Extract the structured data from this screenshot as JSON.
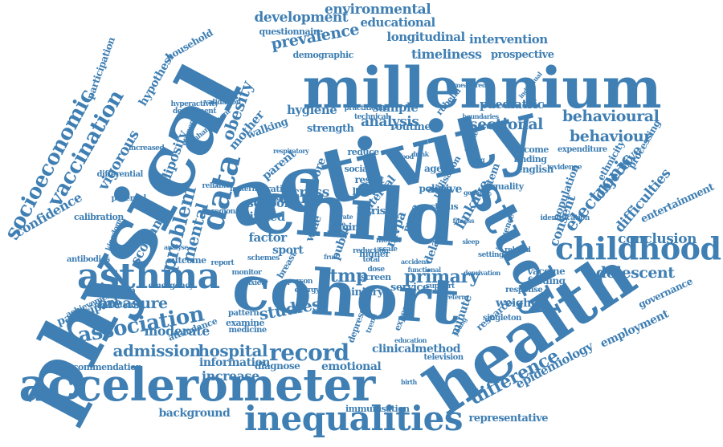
{
  "color": "#3f7fb3",
  "words": [
    {
      "text": "physical"
    },
    {
      "text": "activity"
    },
    {
      "text": "child"
    },
    {
      "text": "cohort"
    },
    {
      "text": "millennium"
    },
    {
      "text": "health"
    },
    {
      "text": "study"
    },
    {
      "text": "accelerometer"
    },
    {
      "text": "inequalities"
    },
    {
      "text": "asthma"
    },
    {
      "text": "childhood"
    },
    {
      "text": "data"
    },
    {
      "text": "record"
    },
    {
      "text": "association"
    },
    {
      "text": "socioeconomic"
    },
    {
      "text": "vaccination"
    },
    {
      "text": "admission"
    },
    {
      "text": "hospital"
    },
    {
      "text": "primary"
    },
    {
      "text": "difference"
    },
    {
      "text": "electronic"
    },
    {
      "text": "behavioural"
    },
    {
      "text": "behaviour"
    },
    {
      "text": "adolescent"
    },
    {
      "text": "sectional"
    },
    {
      "text": "environmental"
    },
    {
      "text": "development"
    },
    {
      "text": "prevalence"
    },
    {
      "text": "longitudinal"
    },
    {
      "text": "educational"
    },
    {
      "text": "timeliness"
    },
    {
      "text": "intervention"
    },
    {
      "text": "prospective"
    },
    {
      "text": "analysis"
    },
    {
      "text": "paediatric"
    },
    {
      "text": "measure"
    },
    {
      "text": "moderate"
    },
    {
      "text": "problem"
    },
    {
      "text": "mental"
    },
    {
      "text": "obesity"
    },
    {
      "text": "studies"
    },
    {
      "text": "year"
    },
    {
      "text": "tmp"
    },
    {
      "text": "consent"
    },
    {
      "text": "objective"
    },
    {
      "text": "difficulties"
    },
    {
      "text": "population"
    },
    {
      "text": "conclusion"
    },
    {
      "text": "entertainment"
    },
    {
      "text": "epidemiology"
    },
    {
      "text": "employment"
    },
    {
      "text": "representative"
    },
    {
      "text": "recommendation"
    },
    {
      "text": "information"
    },
    {
      "text": "increase"
    },
    {
      "text": "background"
    },
    {
      "text": "clinical"
    },
    {
      "text": "method"
    },
    {
      "text": "emotional"
    },
    {
      "text": "diagnose"
    },
    {
      "text": "immunisation"
    },
    {
      "text": "vigorous"
    },
    {
      "text": "confidence"
    },
    {
      "text": "scotland"
    },
    {
      "text": "household"
    },
    {
      "text": "participation"
    },
    {
      "text": "hypothesi"
    },
    {
      "text": "adiposity"
    },
    {
      "text": "mother"
    },
    {
      "text": "hygiene"
    },
    {
      "text": "sample"
    },
    {
      "text": "linkage"
    },
    {
      "text": "participant"
    },
    {
      "text": "symptom"
    },
    {
      "text": "attendance"
    },
    {
      "text": "examine"
    },
    {
      "text": "medicine"
    },
    {
      "text": "pattern"
    },
    {
      "text": "outcome"
    },
    {
      "text": "school"
    },
    {
      "text": "factor"
    },
    {
      "text": "sport"
    },
    {
      "text": "linked"
    },
    {
      "text": "parent"
    },
    {
      "text": "weight"
    },
    {
      "text": "feeding"
    },
    {
      "text": "vaccine"
    },
    {
      "text": "research"
    },
    {
      "text": "service"
    },
    {
      "text": "minute"
    },
    {
      "text": "questionnaire"
    },
    {
      "text": "demographic"
    },
    {
      "text": "governance"
    },
    {
      "text": "ethnicity"
    },
    {
      "text": "processing"
    },
    {
      "text": "expenditure"
    },
    {
      "text": "quality"
    },
    {
      "text": "english"
    },
    {
      "text": "finding"
    },
    {
      "text": "income"
    },
    {
      "text": "system"
    },
    {
      "text": "influence"
    },
    {
      "text": "calibration"
    },
    {
      "text": "antibodies"
    },
    {
      "text": "achievement"
    },
    {
      "text": "mediation"
    },
    {
      "text": "emergency"
    },
    {
      "text": "depression"
    },
    {
      "text": "exposure"
    },
    {
      "text": "television"
    },
    {
      "text": "singleton"
    },
    {
      "text": "response"
    },
    {
      "text": "injury"
    },
    {
      "text": "screen"
    },
    {
      "text": "higher"
    },
    {
      "text": "delayed"
    },
    {
      "text": "active"
    },
    {
      "text": "policy"
    },
    {
      "text": "status"
    },
    {
      "text": "risk"
    },
    {
      "text": "boy"
    },
    {
      "text": "cross"
    },
    {
      "text": "wale"
    },
    {
      "text": "ratio"
    },
    {
      "text": "breast"
    },
    {
      "text": "public"
    },
    {
      "text": "girl"
    },
    {
      "text": "mvpa"
    },
    {
      "text": "more"
    },
    {
      "text": "aged"
    },
    {
      "text": "interval"
    },
    {
      "text": "level"
    },
    {
      "text": "result"
    },
    {
      "text": "social"
    },
    {
      "text": "reduce"
    },
    {
      "text": "score"
    },
    {
      "text": "strength"
    },
    {
      "text": "routine"
    },
    {
      "text": "walking"
    },
    {
      "text": "wheeze"
    },
    {
      "text": "rubella"
    },
    {
      "text": "utilisation"
    },
    {
      "text": "parental"
    },
    {
      "text": "kingdom"
    },
    {
      "text": "differential"
    },
    {
      "text": "increased"
    },
    {
      "text": "hyperactivity"
    },
    {
      "text": "department"
    },
    {
      "text": "enhancement"
    },
    {
      "text": "economic"
    },
    {
      "text": "validation"
    },
    {
      "text": "practitioner"
    },
    {
      "text": "technical"
    },
    {
      "text": "reliable"
    },
    {
      "text": "regional"
    },
    {
      "text": "maternal"
    },
    {
      "text": "monitor"
    },
    {
      "text": "anxiety"
    },
    {
      "text": "person"
    },
    {
      "text": "energy"
    },
    {
      "text": "support"
    },
    {
      "text": "setting"
    },
    {
      "text": "related"
    },
    {
      "text": "evidence"
    },
    {
      "text": "identification"
    },
    {
      "text": "measured"
    },
    {
      "text": "individual"
    },
    {
      "text": "boundaries"
    },
    {
      "text": "schemes"
    },
    {
      "text": "report"
    },
    {
      "text": "analyse"
    },
    {
      "text": "reduction"
    },
    {
      "text": "total"
    },
    {
      "text": "dose"
    },
    {
      "text": "month"
    },
    {
      "text": "scale"
    },
    {
      "text": "rate"
    },
    {
      "text": "free"
    },
    {
      "text": "meal"
    },
    {
      "text": "fruit"
    },
    {
      "text": "food"
    },
    {
      "text": "drink"
    },
    {
      "text": "lung"
    },
    {
      "text": "uptake"
    },
    {
      "text": "genetic"
    },
    {
      "text": "fitness"
    },
    {
      "text": "sleep"
    },
    {
      "text": "deprivation"
    },
    {
      "text": "education"
    },
    {
      "text": "preterm"
    },
    {
      "text": "birth"
    },
    {
      "text": "young"
    },
    {
      "text": "trend"
    },
    {
      "text": "accident"
    },
    {
      "text": "functional"
    },
    {
      "text": "respiratory"
    },
    {
      "text": "access"
    },
    {
      "text": "teacher"
    },
    {
      "text": "gender"
    },
    {
      "text": "family"
    },
    {
      "text": "sedentary"
    }
  ]
}
